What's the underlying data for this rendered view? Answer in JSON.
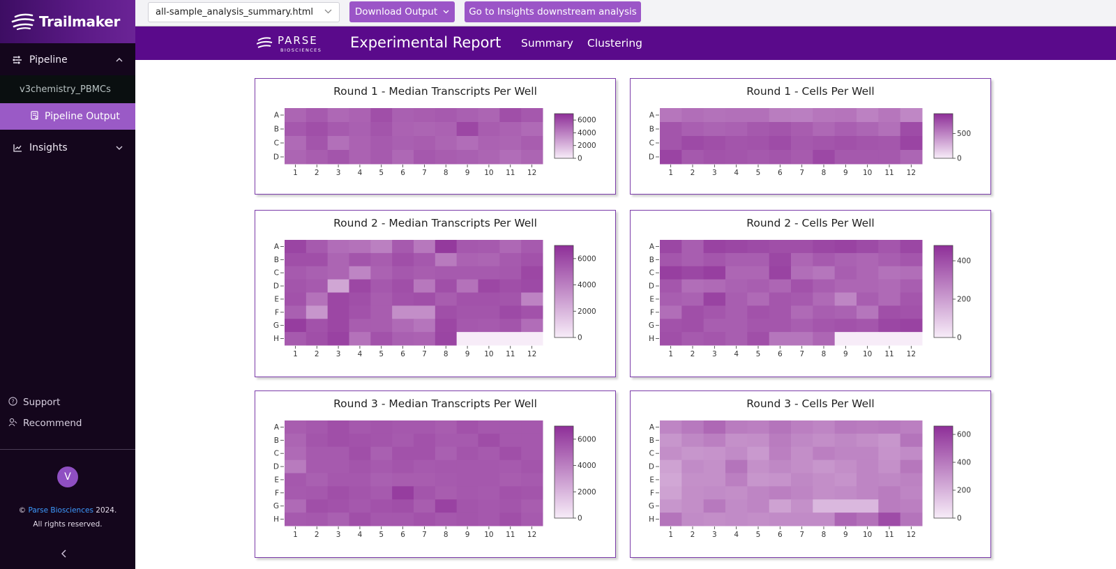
{
  "app": {
    "brand": "Trailmaker",
    "nav": {
      "pipeline": "Pipeline",
      "project": "v3chemistry_PBMCs",
      "pipeline_output": "Pipeline Output",
      "insights": "Insights"
    },
    "support": "Support",
    "recommend": "Recommend",
    "avatar_initial": "V",
    "copyright_prefix": "©",
    "copyright_company": "Parse Biosciences",
    "copyright_year": "2024.",
    "rights": "All rights reserved."
  },
  "toolbar": {
    "file_select": "all-sample_analysis_summary.html",
    "download_label": "Download Output",
    "insights_label": "Go to Insights downstream analysis"
  },
  "report": {
    "logo_text": "PARSE",
    "logo_sub": "BIOSCIENCES",
    "title": "Experimental Report",
    "tabs": [
      "Summary",
      "Clustering"
    ]
  },
  "colors": {
    "accent": "#9b55c7",
    "header": "#5a0a8b",
    "heat_low": "#f7ecf8",
    "heat_high": "#8e2f98"
  },
  "chart_data": [
    {
      "type": "heatmap",
      "title": "Round 1 - Median Transcripts Per Well",
      "rows": [
        "A",
        "B",
        "C",
        "D"
      ],
      "columns": [
        "1",
        "2",
        "3",
        "4",
        "5",
        "6",
        "7",
        "8",
        "9",
        "10",
        "11",
        "12"
      ],
      "zlim": [
        0,
        7000
      ],
      "colorbar_ticks": [
        0,
        2000,
        4000,
        6000
      ],
      "values": [
        [
          5000,
          5400,
          4900,
          5100,
          5800,
          5200,
          5300,
          5400,
          5200,
          5000,
          5800,
          5500
        ],
        [
          5500,
          5800,
          5400,
          5200,
          5600,
          5100,
          5000,
          5100,
          6100,
          5300,
          5100,
          4800
        ],
        [
          4800,
          5600,
          4600,
          5100,
          5400,
          5200,
          5300,
          5000,
          4700,
          5100,
          5000,
          5300
        ],
        [
          5000,
          5300,
          5600,
          5100,
          5400,
          4900,
          5500,
          5300,
          5200,
          5000,
          4700,
          5000
        ]
      ]
    },
    {
      "type": "heatmap",
      "title": "Round 1 - Cells Per Well",
      "rows": [
        "A",
        "B",
        "C",
        "D"
      ],
      "columns": [
        "1",
        "2",
        "3",
        "4",
        "5",
        "6",
        "7",
        "8",
        "9",
        "10",
        "11",
        "12"
      ],
      "zlim": [
        0,
        900
      ],
      "colorbar_ticks": [
        0,
        500
      ],
      "values": [
        [
          560,
          600,
          580,
          590,
          590,
          530,
          520,
          560,
          570,
          510,
          560,
          480
        ],
        [
          720,
          670,
          650,
          660,
          700,
          720,
          680,
          630,
          670,
          640,
          590,
          760
        ],
        [
          720,
          770,
          750,
          720,
          730,
          760,
          700,
          720,
          740,
          720,
          710,
          800
        ],
        [
          800,
          700,
          730,
          720,
          700,
          720,
          690,
          780,
          700,
          700,
          700,
          640
        ]
      ]
    },
    {
      "type": "heatmap",
      "title": "Round 2 - Median Transcripts Per Well",
      "rows": [
        "A",
        "B",
        "C",
        "D",
        "E",
        "F",
        "G",
        "H"
      ],
      "columns": [
        "1",
        "2",
        "3",
        "4",
        "5",
        "6",
        "7",
        "8",
        "9",
        "10",
        "11",
        "12"
      ],
      "zlim": [
        0,
        7000
      ],
      "colorbar_ticks": [
        0,
        2000,
        4000,
        6000
      ],
      "values": [
        [
          6200,
          5400,
          4700,
          4500,
          4000,
          5400,
          4300,
          6600,
          5500,
          5400,
          4900,
          5400
        ],
        [
          5800,
          5800,
          5000,
          5600,
          5300,
          5800,
          5500,
          4200,
          5100,
          5000,
          5400,
          5700
        ],
        [
          5400,
          5200,
          5000,
          3800,
          5100,
          5500,
          5300,
          5400,
          5400,
          5400,
          5500,
          6100
        ],
        [
          5600,
          5400,
          2600,
          6100,
          5500,
          5800,
          4300,
          5800,
          4500,
          6100,
          5800,
          6000
        ],
        [
          5700,
          4500,
          6100,
          5800,
          5300,
          5700,
          5800,
          5300,
          5700,
          5700,
          5600,
          3900
        ],
        [
          5200,
          3200,
          6100,
          5700,
          5300,
          3500,
          3500,
          5800,
          5600,
          5600,
          6000,
          5700
        ],
        [
          6500,
          5700,
          6100,
          5300,
          5300,
          4800,
          4400,
          6100,
          5500,
          5400,
          5600,
          4700
        ],
        [
          5400,
          5800,
          6300,
          4500,
          5700,
          5200,
          5100,
          6200,
          0,
          0,
          0,
          0
        ]
      ]
    },
    {
      "type": "heatmap",
      "title": "Round 2 - Cells Per Well",
      "rows": [
        "A",
        "B",
        "C",
        "D",
        "E",
        "F",
        "G",
        "H"
      ],
      "columns": [
        "1",
        "2",
        "3",
        "4",
        "5",
        "6",
        "7",
        "8",
        "9",
        "10",
        "11",
        "12"
      ],
      "zlim": [
        0,
        480
      ],
      "colorbar_ticks": [
        0,
        200,
        400
      ],
      "values": [
        [
          420,
          360,
          430,
          420,
          410,
          400,
          400,
          420,
          430,
          410,
          380,
          420
        ],
        [
          380,
          360,
          380,
          360,
          360,
          420,
          340,
          370,
          350,
          340,
          360,
          380
        ],
        [
          440,
          420,
          440,
          340,
          340,
          430,
          320,
          300,
          360,
          340,
          310,
          320
        ],
        [
          380,
          320,
          330,
          350,
          360,
          340,
          390,
          360,
          340,
          340,
          330,
          360
        ],
        [
          360,
          350,
          430,
          360,
          330,
          380,
          370,
          330,
          260,
          360,
          330,
          380
        ],
        [
          320,
          400,
          380,
          360,
          390,
          380,
          330,
          360,
          350,
          300,
          400,
          390
        ],
        [
          390,
          400,
          360,
          360,
          380,
          380,
          360,
          380,
          390,
          380,
          420,
          430
        ],
        [
          400,
          370,
          380,
          360,
          400,
          300,
          300,
          340,
          0,
          0,
          0,
          0
        ]
      ]
    },
    {
      "type": "heatmap",
      "title": "Round 3 - Median Transcripts Per Well",
      "rows": [
        "A",
        "B",
        "C",
        "D",
        "E",
        "F",
        "G",
        "H"
      ],
      "columns": [
        "1",
        "2",
        "3",
        "4",
        "5",
        "6",
        "7",
        "8",
        "9",
        "10",
        "11",
        "12"
      ],
      "zlim": [
        0,
        7000
      ],
      "colorbar_ticks": [
        0,
        2000,
        4000,
        6000
      ],
      "values": [
        [
          5300,
          5500,
          5800,
          5500,
          5600,
          5500,
          5500,
          5300,
          5700,
          5500,
          5500,
          5500
        ],
        [
          5000,
          5600,
          5800,
          5700,
          5600,
          5400,
          5700,
          5400,
          5400,
          5900,
          5500,
          5500
        ],
        [
          4800,
          5400,
          5400,
          5800,
          5200,
          5700,
          5700,
          5200,
          5600,
          5400,
          5800,
          5500
        ],
        [
          4200,
          5400,
          5400,
          5600,
          5400,
          5600,
          5400,
          5500,
          5500,
          5500,
          5400,
          5600
        ],
        [
          5500,
          5200,
          5500,
          5500,
          5200,
          5300,
          5300,
          5400,
          5500,
          5500,
          5300,
          5400
        ],
        [
          5400,
          5500,
          5800,
          5600,
          5400,
          6500,
          5600,
          5300,
          5500,
          5400,
          5700,
          5600
        ],
        [
          4800,
          5800,
          5700,
          5500,
          5700,
          5800,
          5300,
          6300,
          5600,
          5500,
          5600,
          5300
        ],
        [
          5400,
          5500,
          5200,
          5800,
          5500,
          5500,
          5700,
          5500,
          5600,
          5500,
          5800,
          5400
        ]
      ]
    },
    {
      "type": "heatmap",
      "title": "Round 3 - Cells Per Well",
      "rows": [
        "A",
        "B",
        "C",
        "D",
        "E",
        "F",
        "G",
        "H"
      ],
      "columns": [
        "1",
        "2",
        "3",
        "4",
        "5",
        "6",
        "7",
        "8",
        "9",
        "10",
        "11",
        "12"
      ],
      "zlim": [
        0,
        660
      ],
      "colorbar_ticks": [
        0,
        200,
        400,
        600
      ],
      "values": [
        [
          360,
          400,
          460,
          390,
          380,
          420,
          380,
          360,
          400,
          390,
          400,
          380
        ],
        [
          300,
          350,
          380,
          320,
          330,
          390,
          350,
          330,
          350,
          330,
          300,
          420
        ],
        [
          330,
          300,
          310,
          340,
          290,
          380,
          330,
          380,
          360,
          360,
          310,
          340
        ],
        [
          260,
          340,
          320,
          420,
          320,
          350,
          330,
          300,
          330,
          360,
          320,
          410
        ],
        [
          240,
          320,
          320,
          380,
          300,
          310,
          350,
          330,
          310,
          360,
          350,
          370
        ],
        [
          260,
          330,
          340,
          330,
          360,
          380,
          360,
          330,
          340,
          360,
          390,
          360
        ],
        [
          300,
          330,
          400,
          340,
          360,
          260,
          320,
          180,
          180,
          180,
          390,
          380
        ],
        [
          420,
          340,
          330,
          340,
          330,
          340,
          340,
          340,
          470,
          430,
          560,
          420
        ]
      ]
    }
  ]
}
